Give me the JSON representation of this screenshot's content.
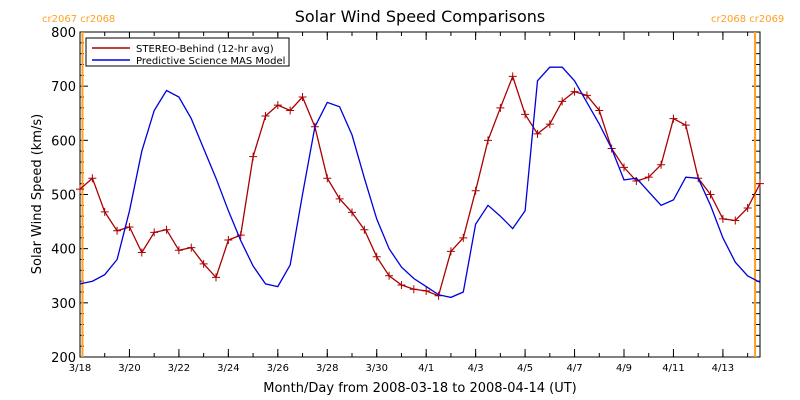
{
  "chart_data": {
    "type": "line",
    "title": "Solar Wind Speed Comparisons",
    "xlabel": "Month/Day from 2008-03-18 to 2008-04-14 (UT)",
    "ylabel": "Solar Wind Speed (km/s)",
    "x_range_days": [
      0,
      27.5
    ],
    "ylim": [
      200,
      800
    ],
    "yticks": [
      200,
      300,
      400,
      500,
      600,
      700,
      800
    ],
    "x_ticks": [
      {
        "day": 0,
        "label": "3/18"
      },
      {
        "day": 2,
        "label": "3/20"
      },
      {
        "day": 4,
        "label": "3/22"
      },
      {
        "day": 6,
        "label": "3/24"
      },
      {
        "day": 8,
        "label": "3/26"
      },
      {
        "day": 10,
        "label": "3/28"
      },
      {
        "day": 12,
        "label": "3/30"
      },
      {
        "day": 14,
        "label": "4/1"
      },
      {
        "day": 16,
        "label": "4/3"
      },
      {
        "day": 18,
        "label": "4/5"
      },
      {
        "day": 20,
        "label": "4/7"
      },
      {
        "day": 22,
        "label": "4/9"
      },
      {
        "day": 24,
        "label": "4/11"
      },
      {
        "day": 26,
        "label": "4/13"
      }
    ],
    "legend": "top-left",
    "carrington_markers": [
      {
        "day": 0.1,
        "left_label": "cr2067",
        "right_label": "cr2068",
        "label_side": "left"
      },
      {
        "day": 27.3,
        "left_label": "cr2068",
        "right_label": "cr2069",
        "label_side": "right"
      }
    ],
    "marker_color": "#FFA020",
    "series": [
      {
        "name": "STEREO-Behind (12-hr avg)",
        "color": "#aa0000",
        "marker": "plus",
        "x": [
          0.0,
          0.5,
          1.0,
          1.5,
          2.0,
          2.5,
          3.0,
          3.5,
          4.0,
          4.5,
          5.0,
          5.5,
          6.0,
          6.5,
          7.0,
          7.5,
          8.0,
          8.5,
          9.0,
          9.5,
          10.0,
          10.5,
          11.0,
          11.5,
          12.0,
          12.5,
          13.0,
          13.5,
          14.0,
          14.5,
          15.0,
          15.5,
          16.0,
          16.5,
          17.0,
          17.5,
          18.0,
          18.5,
          19.0,
          19.5,
          20.0,
          20.5,
          21.0,
          21.5,
          22.0,
          22.5,
          23.0,
          23.5,
          24.0,
          24.5,
          25.0,
          25.5,
          26.0,
          26.5,
          27.0,
          27.5
        ],
        "values": [
          510,
          530,
          468,
          433,
          440,
          393,
          430,
          435,
          397,
          402,
          372,
          347,
          416,
          425,
          570,
          645,
          665,
          655,
          680,
          625,
          530,
          492,
          467,
          435,
          385,
          350,
          333,
          325,
          322,
          313,
          395,
          420,
          507,
          600,
          660,
          718,
          648,
          612,
          630,
          672,
          690,
          683,
          655,
          585,
          550,
          525,
          532,
          555,
          640,
          628,
          530,
          500,
          455,
          452,
          475,
          520
        ]
      },
      {
        "name": "Predictive Science MAS Model",
        "color": "#0000dd",
        "marker": "none",
        "x": [
          0.0,
          0.5,
          1.0,
          1.5,
          2.0,
          2.5,
          3.0,
          3.5,
          4.0,
          4.5,
          5.0,
          5.5,
          6.0,
          6.5,
          7.0,
          7.5,
          8.0,
          8.5,
          9.0,
          9.5,
          10.0,
          10.5,
          11.0,
          11.5,
          12.0,
          12.5,
          13.0,
          13.5,
          14.0,
          14.5,
          15.0,
          15.5,
          16.0,
          16.5,
          17.0,
          17.5,
          18.0,
          18.5,
          19.0,
          19.5,
          20.0,
          20.5,
          21.0,
          21.5,
          22.0,
          22.5,
          23.0,
          23.5,
          24.0,
          24.5,
          25.0,
          25.5,
          26.0,
          26.5,
          27.0,
          27.5
        ],
        "values": [
          335,
          340,
          352,
          380,
          470,
          580,
          655,
          692,
          680,
          640,
          585,
          530,
          470,
          415,
          368,
          335,
          330,
          370,
          500,
          625,
          670,
          662,
          610,
          530,
          455,
          400,
          366,
          345,
          330,
          315,
          310,
          320,
          445,
          480,
          460,
          437,
          470,
          710,
          735,
          735,
          710,
          670,
          630,
          585,
          527,
          530,
          505,
          480,
          490,
          532,
          530,
          480,
          420,
          375,
          350,
          338
        ]
      }
    ]
  }
}
